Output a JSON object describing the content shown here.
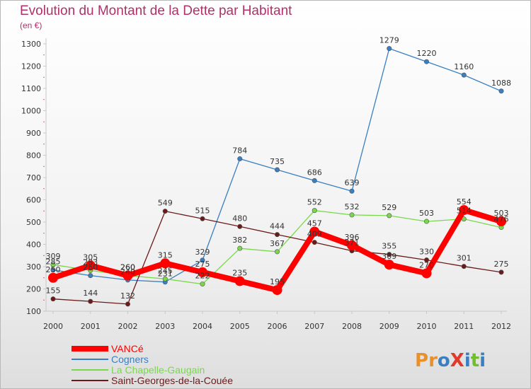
{
  "header": {
    "title": "Evolution du Montant de la Dette par Habitant",
    "subtitle": "(en €)"
  },
  "branding": {
    "logo_text": "ProXiti"
  },
  "colors": {
    "axis": "#c8c8c8",
    "tick_label": "#333333",
    "data_label": "#333333",
    "title": "#b0306a",
    "logo_letters": [
      "#e8902a",
      "#e8902a",
      "#3a7fc1",
      "#e23a2a",
      "#3a7fc1",
      "#6fbf2e",
      "#3a7fc1"
    ]
  },
  "chart_data": {
    "type": "line",
    "title": "Evolution du Montant de la Dette par Habitant",
    "subtitle": "(en €)",
    "xlabel": "",
    "ylabel": "",
    "x": [
      "2000",
      "2001",
      "2002",
      "2003",
      "2004",
      "2005",
      "2006",
      "2007",
      "2008",
      "2009",
      "2010",
      "2011",
      "2012"
    ],
    "ylim": [
      100,
      1300
    ],
    "yticks": [
      100,
      200,
      300,
      400,
      500,
      600,
      700,
      800,
      900,
      1000,
      1100,
      1200,
      1300
    ],
    "grid": false,
    "legend_position": "bottom-left",
    "series": [
      {
        "name": "VANCé",
        "color": "#ff0000",
        "emphasis": true,
        "values": [
          250,
          305,
          260,
          315,
          275,
          235,
          195,
          457,
          396,
          309,
          270,
          554,
          503
        ]
      },
      {
        "name": "Cogners",
        "color": "#3a7fc1",
        "values": [
          285,
          260,
          240,
          231,
          329,
          784,
          735,
          686,
          639,
          1279,
          1220,
          1160,
          1088
        ]
      },
      {
        "name": "La Chapelle-Gaugain",
        "color": "#79d84a",
        "values": [
          309,
          283,
          260,
          245,
          222,
          382,
          367,
          552,
          532,
          529,
          503,
          514,
          476
        ]
      },
      {
        "name": "Saint-Georges-de-la-Couée",
        "color": "#6b1a1a",
        "values": [
          155,
          144,
          132,
          549,
          515,
          480,
          444,
          409,
          371,
          355,
          330,
          301,
          275
        ]
      }
    ]
  }
}
